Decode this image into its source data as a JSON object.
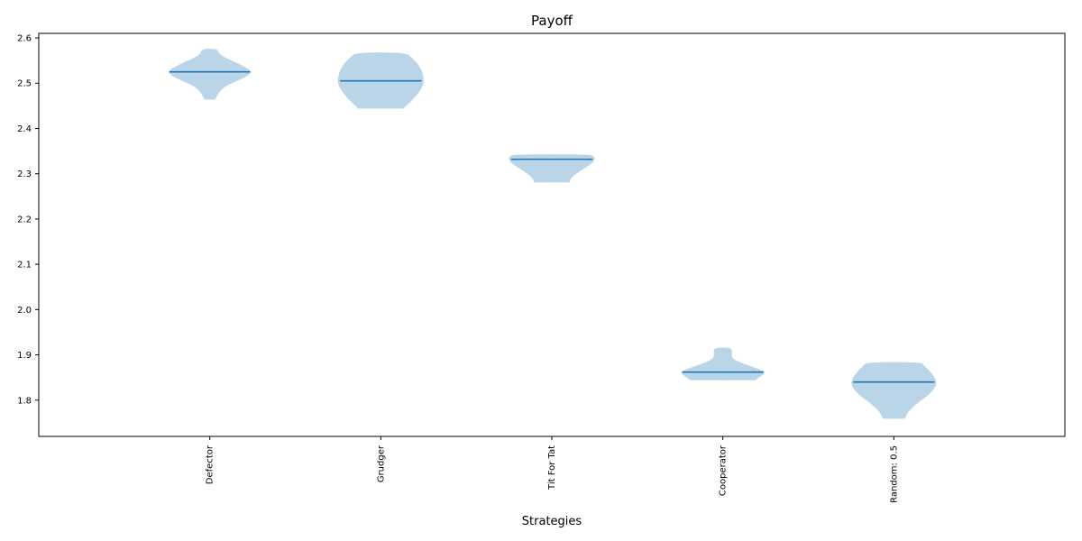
{
  "chart_data": {
    "type": "violin",
    "title": "Payoff",
    "xlabel": "Strategies",
    "ylabel": "",
    "ylim": [
      1.72,
      2.61
    ],
    "yticks": [
      1.8,
      1.9,
      2.0,
      2.1,
      2.2,
      2.3,
      2.4,
      2.5,
      2.6
    ],
    "ytick_labels": [
      "1.8",
      "1.9",
      "2.0",
      "2.1",
      "2.2",
      "2.3",
      "2.4",
      "2.5",
      "2.6"
    ],
    "xtick_rotation_deg": 90,
    "grid": false,
    "colors": {
      "violin_fill": "#bad4e8",
      "median_line": "#1f77b4"
    },
    "categories": [
      "Defector",
      "Grudger",
      "Tit For Tat",
      "Cooperator",
      "Random: 0.5"
    ],
    "violins": [
      {
        "name": "Defector",
        "min": 2.465,
        "max": 2.575,
        "median": 2.525,
        "profile": [
          [
            2.465,
            0.12
          ],
          [
            2.48,
            0.2
          ],
          [
            2.495,
            0.36
          ],
          [
            2.51,
            0.75
          ],
          [
            2.525,
            1.0
          ],
          [
            2.54,
            0.72
          ],
          [
            2.555,
            0.36
          ],
          [
            2.565,
            0.2
          ],
          [
            2.575,
            0.18
          ]
        ]
      },
      {
        "name": "Grudger",
        "min": 2.445,
        "max": 2.567,
        "median": 2.505,
        "profile": [
          [
            2.445,
            0.52
          ],
          [
            2.465,
            0.75
          ],
          [
            2.485,
            0.92
          ],
          [
            2.5,
            1.0
          ],
          [
            2.52,
            0.98
          ],
          [
            2.54,
            0.88
          ],
          [
            2.555,
            0.72
          ],
          [
            2.567,
            0.58
          ]
        ]
      },
      {
        "name": "Tit For Tat",
        "min": 2.282,
        "max": 2.342,
        "median": 2.332,
        "profile": [
          [
            2.282,
            0.4
          ],
          [
            2.292,
            0.45
          ],
          [
            2.305,
            0.62
          ],
          [
            2.318,
            0.85
          ],
          [
            2.33,
            1.0
          ],
          [
            2.337,
            0.98
          ],
          [
            2.342,
            0.92
          ]
        ]
      },
      {
        "name": "Cooperator",
        "min": 1.845,
        "max": 1.915,
        "median": 1.862,
        "profile": [
          [
            1.845,
            0.75
          ],
          [
            1.855,
            0.9
          ],
          [
            1.862,
            1.0
          ],
          [
            1.872,
            0.72
          ],
          [
            1.882,
            0.4
          ],
          [
            1.892,
            0.2
          ],
          [
            1.905,
            0.2
          ],
          [
            1.915,
            0.2
          ]
        ]
      },
      {
        "name": "Random: 0.5",
        "min": 1.76,
        "max": 1.883,
        "median": 1.84,
        "profile": [
          [
            1.76,
            0.25
          ],
          [
            1.775,
            0.32
          ],
          [
            1.795,
            0.55
          ],
          [
            1.815,
            0.85
          ],
          [
            1.835,
            1.0
          ],
          [
            1.85,
            0.95
          ],
          [
            1.865,
            0.82
          ],
          [
            1.875,
            0.7
          ],
          [
            1.883,
            0.65
          ]
        ]
      }
    ]
  }
}
